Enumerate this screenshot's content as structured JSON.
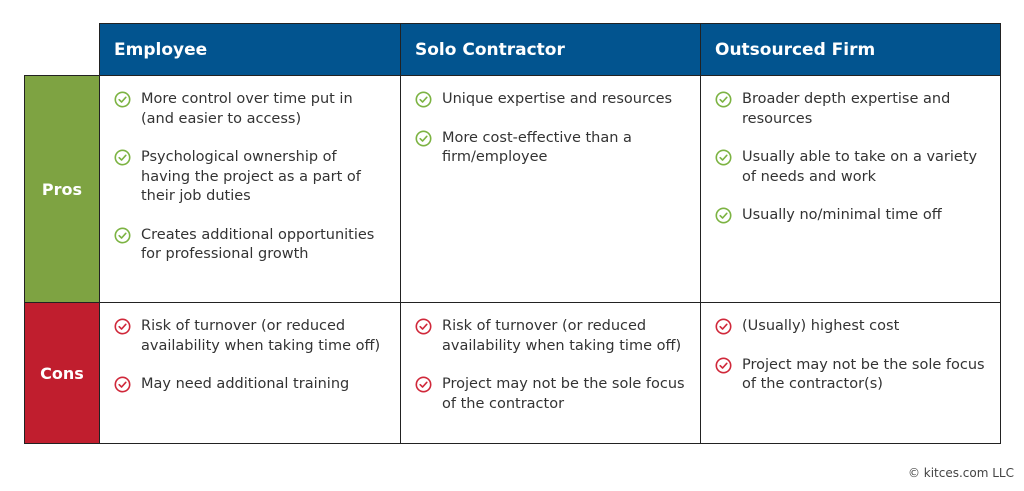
{
  "colors": {
    "header_blue": "#02548f",
    "pros_green": "#7ea342",
    "cons_red": "#c01e2e",
    "check_green": "#7cb342",
    "check_red": "#d0283a"
  },
  "columns": [
    {
      "label": "Employee"
    },
    {
      "label": "Solo Contractor"
    },
    {
      "label": "Outsourced Firm"
    }
  ],
  "rows": [
    {
      "label": "Pros",
      "icon": "check-circle-icon",
      "cells": [
        [
          "More control over time put in (and easier to access)",
          "Psychological ownership of having the project as a part of their job duties",
          "Creates additional opportunities for professional growth"
        ],
        [
          "Unique expertise and resources",
          "More cost-effective than a firm/employee"
        ],
        [
          "Broader depth expertise and resources",
          "Usually able to take on a variety of needs and work",
          "Usually no/minimal time off"
        ]
      ]
    },
    {
      "label": "Cons",
      "icon": "check-circle-icon",
      "cells": [
        [
          "Risk of turnover (or reduced availability when taking time off)",
          "May need additional training"
        ],
        [
          "Risk of turnover (or reduced availability when taking time off)",
          "Project may not be the sole focus of the contractor"
        ],
        [
          "(Usually) highest cost",
          "Project may not be the sole focus of the contractor(s)"
        ]
      ]
    }
  ],
  "footer": "© kitces.com LLC"
}
